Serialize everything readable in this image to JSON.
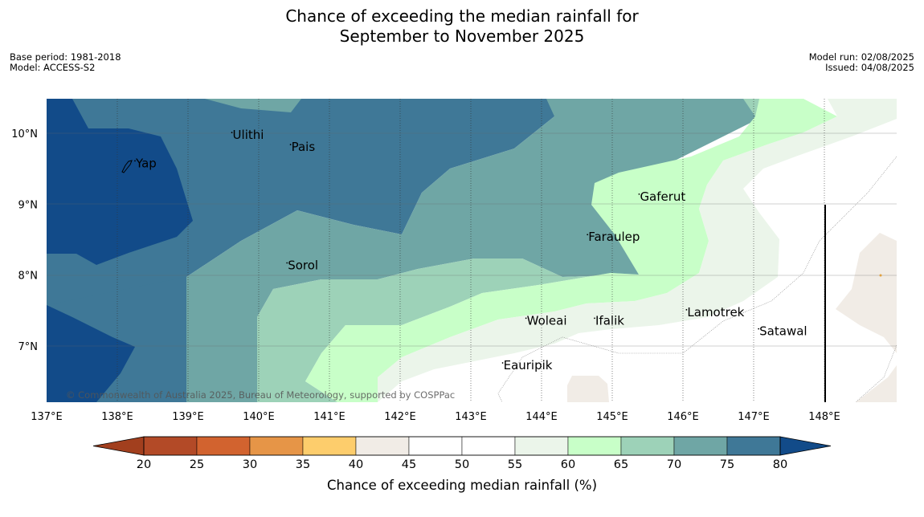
{
  "title": {
    "line1": "Chance of exceeding the median rainfall for",
    "line2": "September to November 2025"
  },
  "meta": {
    "base_period": "Base period: 1981-2018",
    "model": "Model: ACCESS-S2",
    "model_run": "Model run: 02/08/2025",
    "issued": "Issued: 04/08/2025"
  },
  "copyright": "© Commonwealth of Australia 2025, Bureau of Meteorology, supported by COSPPac",
  "lon_ticks": [
    "137°E",
    "138°E",
    "139°E",
    "140°E",
    "141°E",
    "142°E",
    "143°E",
    "144°E",
    "145°E",
    "146°E",
    "147°E",
    "148°E"
  ],
  "lat_ticks": [
    "10°N",
    "9°N",
    "8°N",
    "7°N"
  ],
  "places": [
    {
      "name": "Yap",
      "lon": 138.25,
      "lat": 9.52
    },
    {
      "name": "Ulithi",
      "lon": 139.62,
      "lat": 9.92
    },
    {
      "name": "Pais",
      "lon": 140.45,
      "lat": 9.75
    },
    {
      "name": "Gaferut",
      "lon": 145.38,
      "lat": 9.05
    },
    {
      "name": "Faraulep",
      "lon": 144.65,
      "lat": 8.48
    },
    {
      "name": "Sorol",
      "lon": 140.4,
      "lat": 8.08
    },
    {
      "name": "Lamotrek",
      "lon": 146.05,
      "lat": 7.42
    },
    {
      "name": "Woleai",
      "lon": 143.78,
      "lat": 7.3
    },
    {
      "name": "Ifalik",
      "lon": 144.75,
      "lat": 7.3
    },
    {
      "name": "Satawal",
      "lon": 147.07,
      "lat": 7.15
    },
    {
      "name": "Eauripik",
      "lon": 143.45,
      "lat": 6.67
    }
  ],
  "colorbar": {
    "ticks": [
      "20",
      "25",
      "30",
      "35",
      "40",
      "45",
      "50",
      "55",
      "60",
      "65",
      "70",
      "75",
      "80"
    ],
    "colors": [
      "#b34a27",
      "#d2632f",
      "#e69547",
      "#fdcd6c",
      "#f1ece6",
      "#ffffff",
      "#ffffff",
      "#ebf5ea",
      "#c8ffc8",
      "#9dd2b8",
      "#6fa6a5",
      "#3f7897"
    ],
    "under_color": "#a23f1e",
    "over_color": "#124b89",
    "label": "Chance of exceeding median rainfall (%)"
  }
}
